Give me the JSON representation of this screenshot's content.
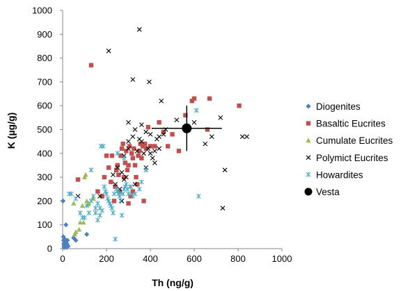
{
  "chart_data": {
    "type": "scatter",
    "xlabel": "Th (ng/g)",
    "ylabel": "K (µg/g)",
    "xlim": [
      0,
      1000
    ],
    "ylim": [
      0,
      1000
    ],
    "xticks": [
      "0",
      "200",
      "400",
      "600",
      "800",
      "1000"
    ],
    "yticks": [
      "0",
      "100",
      "200",
      "300",
      "400",
      "500",
      "600",
      "700",
      "800",
      "900",
      "1000"
    ],
    "grid": false,
    "legend_position": "right",
    "series": [
      {
        "name": "Diogenites",
        "marker": "diamond",
        "color": "#4F81BD",
        "points": [
          [
            2,
            200
          ],
          [
            3,
            50
          ],
          [
            4,
            35
          ],
          [
            5,
            20
          ],
          [
            6,
            10
          ],
          [
            7,
            5
          ],
          [
            8,
            15
          ],
          [
            9,
            40
          ],
          [
            10,
            25
          ],
          [
            12,
            8
          ],
          [
            14,
            30
          ],
          [
            15,
            100
          ],
          [
            16,
            12
          ],
          [
            18,
            5
          ],
          [
            20,
            20
          ],
          [
            22,
            35
          ],
          [
            50,
            45
          ],
          [
            60,
            35
          ],
          [
            110,
            60
          ],
          [
            25,
            10
          ]
        ]
      },
      {
        "name": "Basaltic Eucrites",
        "marker": "square",
        "color": "#C0504D",
        "points": [
          [
            130,
            770
          ],
          [
            70,
            290
          ],
          [
            160,
            240
          ],
          [
            180,
            220
          ],
          [
            190,
            300
          ],
          [
            210,
            340
          ],
          [
            220,
            280
          ],
          [
            225,
            390
          ],
          [
            235,
            200
          ],
          [
            240,
            260
          ],
          [
            245,
            330
          ],
          [
            250,
            350
          ],
          [
            255,
            310
          ],
          [
            260,
            240
          ],
          [
            265,
            390
          ],
          [
            270,
            420
          ],
          [
            275,
            440
          ],
          [
            280,
            300
          ],
          [
            285,
            360
          ],
          [
            290,
            410
          ],
          [
            295,
            330
          ],
          [
            300,
            350
          ],
          [
            305,
            430
          ],
          [
            310,
            220
          ],
          [
            315,
            400
          ],
          [
            320,
            380
          ],
          [
            325,
            420
          ],
          [
            330,
            350
          ],
          [
            335,
            300
          ],
          [
            340,
            270
          ],
          [
            345,
            390
          ],
          [
            350,
            410
          ],
          [
            355,
            440
          ],
          [
            360,
            380
          ],
          [
            365,
            430
          ],
          [
            370,
            200
          ],
          [
            375,
            440
          ],
          [
            380,
            420
          ],
          [
            390,
            510
          ],
          [
            400,
            430
          ],
          [
            420,
            430
          ],
          [
            440,
            530
          ],
          [
            460,
            490
          ],
          [
            480,
            430
          ],
          [
            500,
            480
          ],
          [
            530,
            410
          ],
          [
            560,
            560
          ],
          [
            590,
            620
          ],
          [
            600,
            630
          ],
          [
            660,
            500
          ],
          [
            670,
            630
          ],
          [
            805,
            600
          ],
          [
            320,
            240
          ],
          [
            300,
            190
          ],
          [
            200,
            390
          ]
        ]
      },
      {
        "name": "Cumulate Eucrites",
        "marker": "triangle",
        "color": "#9BBB59",
        "points": [
          [
            50,
            190
          ],
          [
            60,
            70
          ],
          [
            75,
            80
          ],
          [
            80,
            110
          ],
          [
            90,
            180
          ],
          [
            95,
            110
          ],
          [
            100,
            300
          ],
          [
            105,
            310
          ],
          [
            110,
            200
          ],
          [
            115,
            185
          ],
          [
            120,
            190
          ],
          [
            140,
            210
          ],
          [
            55,
            60
          ]
        ]
      },
      {
        "name": "Polymict Eucrites",
        "marker": "x",
        "color": "#000000",
        "points": [
          [
            350,
            920
          ],
          [
            210,
            830
          ],
          [
            320,
            710
          ],
          [
            395,
            700
          ],
          [
            450,
            620
          ],
          [
            720,
            550
          ],
          [
            300,
            530
          ],
          [
            360,
            520
          ],
          [
            400,
            480
          ],
          [
            430,
            460
          ],
          [
            470,
            500
          ],
          [
            520,
            540
          ],
          [
            560,
            510
          ],
          [
            600,
            530
          ],
          [
            650,
            440
          ],
          [
            680,
            470
          ],
          [
            820,
            470
          ],
          [
            840,
            470
          ],
          [
            740,
            330
          ],
          [
            730,
            170
          ],
          [
            270,
            320
          ],
          [
            290,
            300
          ],
          [
            310,
            260
          ],
          [
            330,
            270
          ],
          [
            300,
            450
          ],
          [
            320,
            470
          ],
          [
            340,
            410
          ],
          [
            370,
            400
          ],
          [
            390,
            420
          ],
          [
            410,
            380
          ],
          [
            420,
            410
          ],
          [
            440,
            470
          ],
          [
            460,
            480
          ],
          [
            280,
            390
          ],
          [
            250,
            340
          ],
          [
            230,
            310
          ],
          [
            170,
            220
          ],
          [
            270,
            200
          ],
          [
            240,
            270
          ],
          [
            380,
            340
          ],
          [
            330,
            500
          ],
          [
            350,
            460
          ],
          [
            300,
            420
          ],
          [
            260,
            250
          ],
          [
            280,
            290
          ],
          [
            400,
            400
          ],
          [
            360,
            450
          ],
          [
            380,
            490
          ],
          [
            420,
            360
          ],
          [
            440,
            420
          ],
          [
            70,
            220
          ]
        ]
      },
      {
        "name": "Howardites",
        "marker": "asterisk",
        "color": "#4BACC6",
        "points": [
          [
            40,
            230
          ],
          [
            60,
            210
          ],
          [
            80,
            150
          ],
          [
            90,
            130
          ],
          [
            100,
            130
          ],
          [
            110,
            180
          ],
          [
            120,
            150
          ],
          [
            130,
            200
          ],
          [
            140,
            220
          ],
          [
            150,
            170
          ],
          [
            160,
            190
          ],
          [
            170,
            170
          ],
          [
            175,
            430
          ],
          [
            185,
            430
          ],
          [
            190,
            260
          ],
          [
            195,
            240
          ],
          [
            200,
            230
          ],
          [
            205,
            210
          ],
          [
            210,
            200
          ],
          [
            215,
            190
          ],
          [
            220,
            180
          ],
          [
            225,
            170
          ],
          [
            230,
            150
          ],
          [
            235,
            230
          ],
          [
            240,
            40
          ],
          [
            245,
            250
          ],
          [
            250,
            240
          ],
          [
            255,
            230
          ],
          [
            260,
            220
          ],
          [
            265,
            200
          ],
          [
            270,
            140
          ],
          [
            275,
            230
          ],
          [
            280,
            250
          ],
          [
            285,
            260
          ],
          [
            290,
            270
          ],
          [
            295,
            250
          ],
          [
            300,
            230
          ],
          [
            310,
            260
          ],
          [
            320,
            220
          ],
          [
            330,
            230
          ],
          [
            350,
            250
          ],
          [
            360,
            280
          ],
          [
            380,
            330
          ],
          [
            250,
            400
          ],
          [
            280,
            380
          ],
          [
            610,
            580
          ],
          [
            620,
            220
          ],
          [
            30,
            230
          ],
          [
            130,
            330
          ],
          [
            160,
            120
          ],
          [
            170,
            140
          ],
          [
            180,
            160
          ],
          [
            150,
            150
          ]
        ]
      },
      {
        "name": "Vesta",
        "marker": "circle",
        "color": "#000000",
        "points": [
          [
            566,
            505
          ]
        ],
        "xerr": 160,
        "yerr": 95
      }
    ]
  }
}
